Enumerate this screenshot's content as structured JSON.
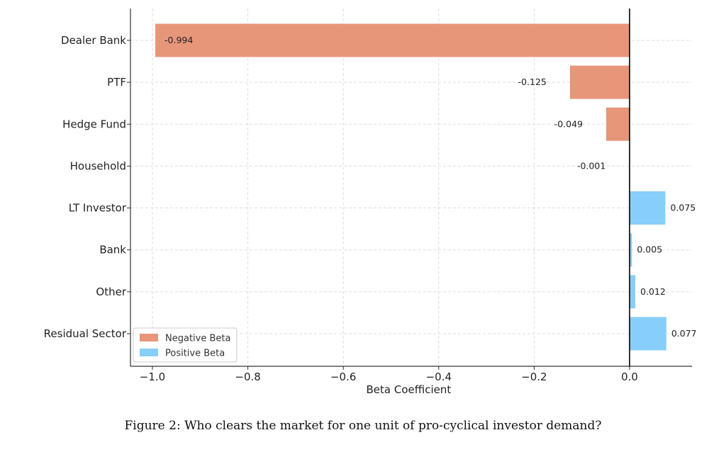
{
  "chart_data": {
    "type": "bar",
    "orientation": "horizontal",
    "categories": [
      "Dealer Bank",
      "PTF",
      "Hedge Fund",
      "Household",
      "LT Investor",
      "Bank",
      "Other",
      "Residual Sector"
    ],
    "values": [
      -0.994,
      -0.125,
      -0.049,
      -0.001,
      0.075,
      0.005,
      0.012,
      0.077
    ],
    "value_labels": [
      "-0.994",
      "-0.125",
      "-0.049",
      "-0.001",
      "0.075",
      "0.005",
      "0.012",
      "0.077"
    ],
    "xlabel": "Beta Coefficient",
    "ylabel": "",
    "xlim": [
      -1.05,
      0.13
    ],
    "x_ticks": [
      -1.0,
      -0.8,
      -0.6,
      -0.4,
      -0.2,
      0.0
    ],
    "x_tick_labels": [
      "−1.0",
      "−0.8",
      "−0.6",
      "−0.4",
      "−0.2",
      "0.0"
    ],
    "grid": true,
    "legend": {
      "placement": "lower-left",
      "entries": [
        {
          "label": "Negative Beta",
          "color": "#E8967A"
        },
        {
          "label": "Positive Beta",
          "color": "#87CEFA"
        }
      ]
    },
    "colors": {
      "negative": "#E8967A",
      "positive": "#87CEFA"
    }
  },
  "caption": "Figure 2: Who clears the market for one unit of pro-cyclical investor demand?"
}
